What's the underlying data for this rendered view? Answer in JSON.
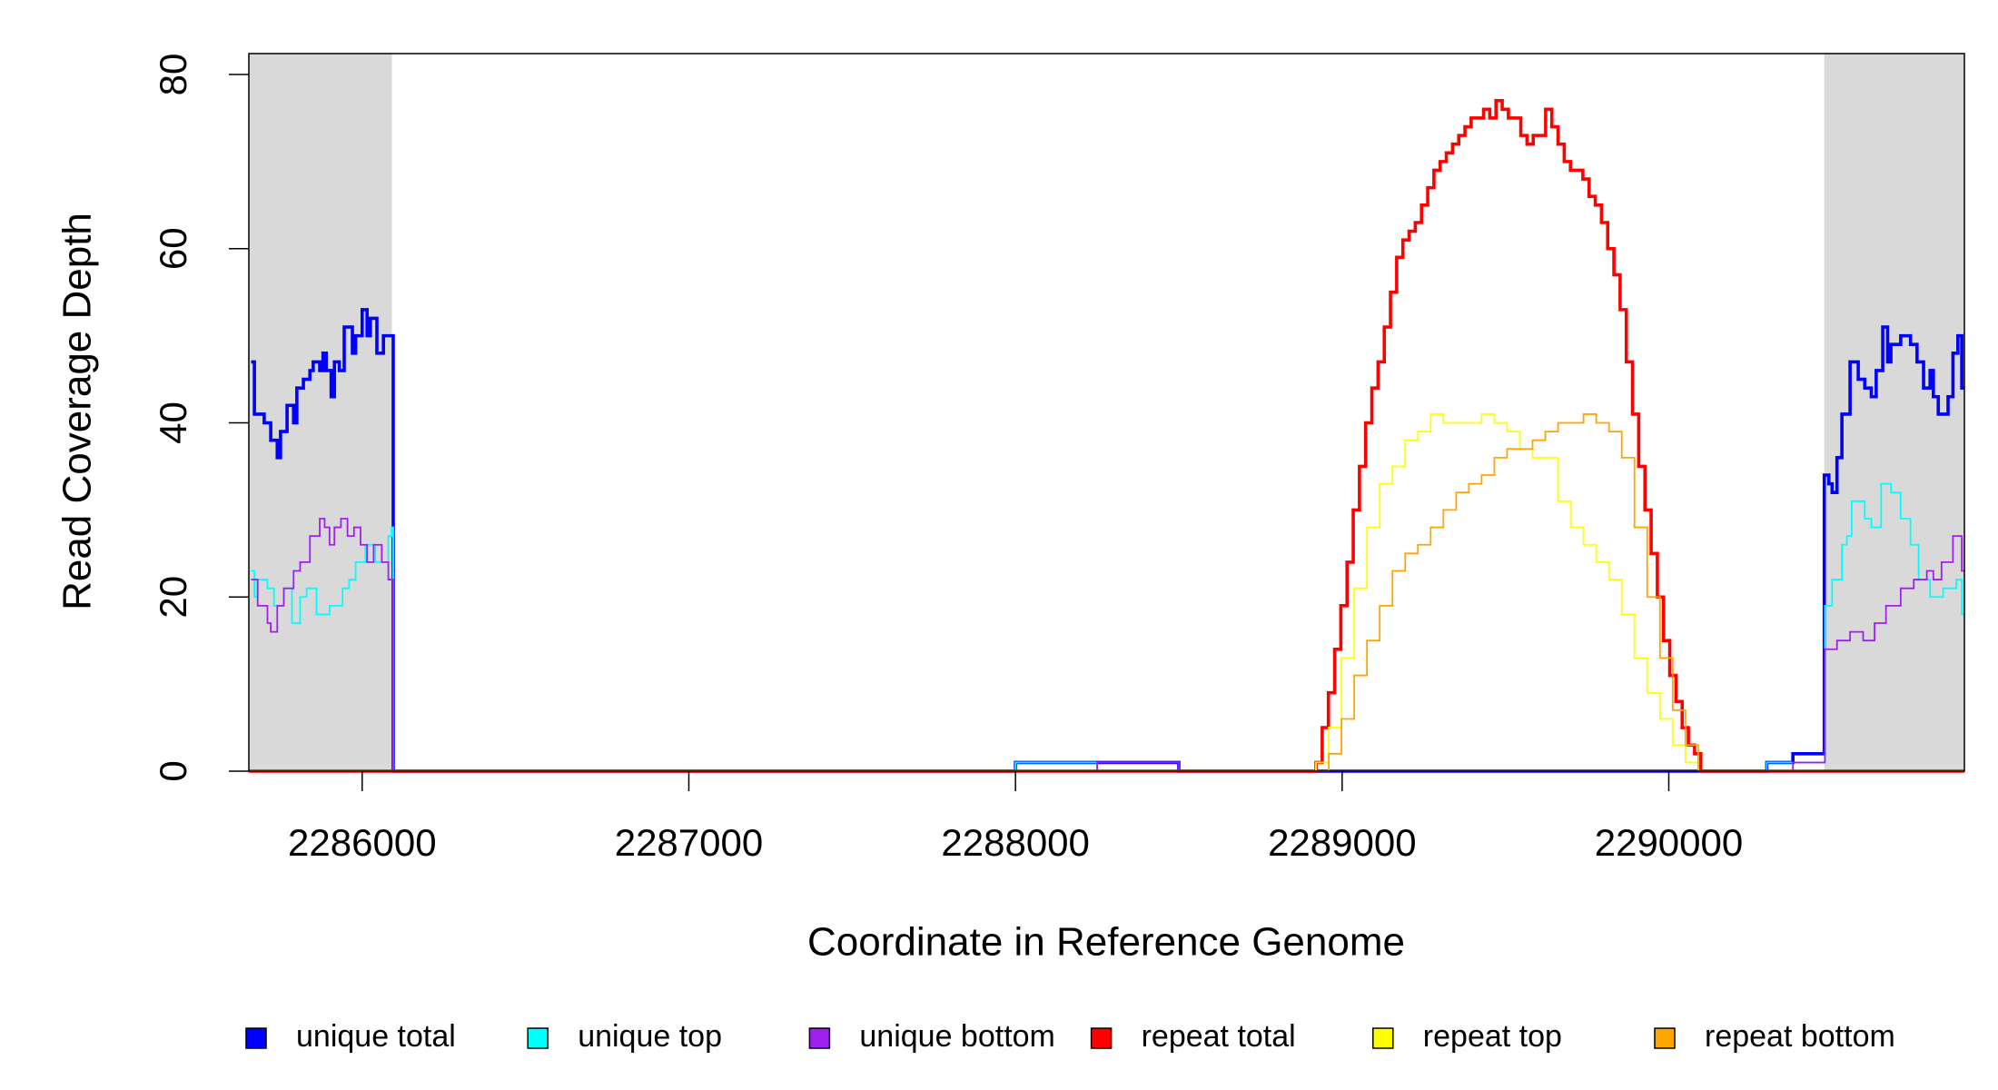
{
  "chart_data": {
    "type": "line",
    "step": true,
    "xlabel": "Coordinate in Reference Genome",
    "ylabel": "Read Coverage Depth",
    "xlim": [
      2285653,
      2290905
    ],
    "ylim": [
      0,
      82.4
    ],
    "xticks": [
      2286000,
      2287000,
      2288000,
      2289000,
      2290000
    ],
    "yticks": [
      0,
      20,
      40,
      60,
      80
    ],
    "shaded_regions": [
      [
        2285653,
        2286091
      ],
      [
        2290476,
        2290905
      ]
    ],
    "shade_color": "#d9d9d9",
    "legend": "bottom",
    "series": [
      {
        "name": "unique total",
        "color": "#0000ff",
        "x": [
          2285660,
          2285670,
          2285700,
          2285720,
          2285740,
          2285750,
          2285770,
          2285790,
          2285800,
          2285820,
          2285840,
          2285850,
          2285870,
          2285880,
          2285890,
          2285905,
          2285915,
          2285930,
          2285945,
          2285970,
          2285980,
          2286000,
          2286015,
          2286025,
          2286045,
          2286065,
          2286095,
          2288000,
          2288500,
          2290300,
          2290380,
          2290476,
          2290490,
          2290500,
          2290515,
          2290530,
          2290555,
          2290580,
          2290600,
          2290620,
          2290635,
          2290655,
          2290670,
          2290680,
          2290710,
          2290740,
          2290760,
          2290780,
          2290800,
          2290810,
          2290825,
          2290855,
          2290870,
          2290885,
          2290897,
          2290905
        ],
        "values": [
          47,
          41,
          40,
          38,
          36,
          39,
          42,
          40,
          44,
          45,
          46,
          47,
          46,
          48,
          46,
          43,
          47,
          46,
          51,
          48,
          50,
          53,
          50,
          52,
          48,
          50,
          0,
          1,
          0,
          1,
          2,
          34,
          33,
          32,
          36,
          41,
          47,
          45,
          44,
          43,
          46,
          51,
          47,
          49,
          50,
          49,
          47,
          44,
          46,
          43,
          41,
          43,
          48,
          50,
          44,
          44
        ]
      },
      {
        "name": "unique top",
        "color": "#00ffff",
        "x": [
          2285660,
          2285670,
          2285680,
          2285710,
          2285730,
          2285760,
          2285785,
          2285810,
          2285830,
          2285860,
          2285900,
          2285940,
          2285960,
          2285980,
          2286010,
          2286040,
          2286080,
          2286090,
          2286095,
          2288000,
          2288250,
          2290300,
          2290478,
          2290500,
          2290530,
          2290545,
          2290560,
          2290600,
          2290620,
          2290650,
          2290680,
          2290710,
          2290740,
          2290765,
          2290800,
          2290840,
          2290880,
          2290897,
          2290905
        ],
        "values": [
          23,
          20,
          22,
          21,
          19,
          21,
          17,
          20,
          21,
          18,
          19,
          21,
          22,
          24,
          26,
          24,
          27,
          28,
          0,
          1,
          0,
          1,
          19,
          22,
          26,
          27,
          31,
          29,
          28,
          33,
          32,
          29,
          26,
          22,
          20,
          21,
          22,
          18,
          18
        ]
      },
      {
        "name": "unique bottom",
        "color": "#a020f0",
        "x": [
          2285660,
          2285680,
          2285710,
          2285720,
          2285740,
          2285760,
          2285790,
          2285810,
          2285840,
          2285870,
          2285885,
          2285900,
          2285915,
          2285935,
          2285955,
          2285975,
          2285995,
          2286015,
          2286035,
          2286060,
          2286080,
          2286095,
          2288250,
          2288500,
          2290380,
          2290478,
          2290515,
          2290555,
          2290595,
          2290630,
          2290665,
          2290710,
          2290750,
          2290790,
          2290810,
          2290835,
          2290870,
          2290897,
          2290905
        ],
        "values": [
          22,
          19,
          17,
          16,
          19,
          21,
          23,
          24,
          27,
          29,
          28,
          26,
          28,
          29,
          27,
          28,
          26,
          24,
          26,
          24,
          22,
          0,
          1,
          0,
          1,
          14,
          15,
          16,
          15,
          17,
          19,
          21,
          22,
          23,
          22,
          24,
          27,
          23,
          23
        ]
      },
      {
        "name": "repeat total",
        "color": "#ff0000",
        "x": [
          2285653,
          2288920,
          2288939,
          2288958,
          2288977,
          2288996,
          2289015,
          2289034,
          2289053,
          2289072,
          2289091,
          2289110,
          2289129,
          2289148,
          2289167,
          2289186,
          2289205,
          2289224,
          2289243,
          2289262,
          2289281,
          2289300,
          2289319,
          2289338,
          2289357,
          2289376,
          2289395,
          2289414,
          2289433,
          2289452,
          2289471,
          2289490,
          2289509,
          2289528,
          2289547,
          2289566,
          2289585,
          2289604,
          2289623,
          2289642,
          2289661,
          2289680,
          2289699,
          2289718,
          2289737,
          2289756,
          2289775,
          2289794,
          2289813,
          2289832,
          2289851,
          2289870,
          2289889,
          2289908,
          2289927,
          2289946,
          2289965,
          2289984,
          2290003,
          2290022,
          2290041,
          2290060,
          2290079,
          2290098,
          2290905
        ],
        "values": [
          0,
          1,
          5,
          9,
          14,
          19,
          24,
          30,
          35,
          40,
          44,
          47,
          51,
          55,
          59,
          61,
          62,
          63,
          65,
          67,
          69,
          70,
          71,
          72,
          73,
          74,
          75,
          75,
          76,
          75,
          77,
          76,
          75,
          75,
          73,
          72,
          73,
          73,
          76,
          74,
          72,
          70,
          69,
          69,
          68,
          66,
          65,
          63,
          60,
          57,
          53,
          47,
          41,
          35,
          30,
          25,
          20,
          15,
          11,
          8,
          5,
          3,
          2,
          0,
          0
        ]
      },
      {
        "name": "repeat top",
        "color": "#ffff00",
        "x": [
          2285653,
          2288920,
          2288959,
          2288998,
          2289037,
          2289076,
          2289115,
          2289154,
          2289193,
          2289232,
          2289271,
          2289310,
          2289349,
          2289388,
          2289427,
          2289466,
          2289505,
          2289544,
          2289583,
          2289622,
          2289661,
          2289700,
          2289739,
          2289778,
          2289817,
          2289856,
          2289895,
          2289934,
          2289973,
          2290012,
          2290051,
          2290090,
          2290905
        ],
        "values": [
          0,
          1,
          5,
          13,
          21,
          28,
          33,
          35,
          38,
          39,
          41,
          40,
          40,
          40,
          41,
          40,
          39,
          37,
          36,
          36,
          31,
          28,
          26,
          24,
          22,
          18,
          13,
          9,
          6,
          3,
          1,
          0,
          0
        ]
      },
      {
        "name": "repeat bottom",
        "color": "#ffa500",
        "x": [
          2285653,
          2288920,
          2288959,
          2288998,
          2289037,
          2289076,
          2289115,
          2289154,
          2289193,
          2289232,
          2289271,
          2289310,
          2289349,
          2289388,
          2289427,
          2289466,
          2289505,
          2289544,
          2289583,
          2289622,
          2289661,
          2289700,
          2289739,
          2289778,
          2289817,
          2289856,
          2289895,
          2289934,
          2289973,
          2290012,
          2290051,
          2290090,
          2290905
        ],
        "values": [
          0,
          0,
          2,
          6,
          11,
          15,
          19,
          23,
          25,
          26,
          28,
          30,
          32,
          33,
          34,
          36,
          37,
          37,
          38,
          39,
          40,
          40,
          41,
          40,
          39,
          36,
          28,
          20,
          13,
          7,
          3,
          0,
          0
        ]
      }
    ]
  }
}
